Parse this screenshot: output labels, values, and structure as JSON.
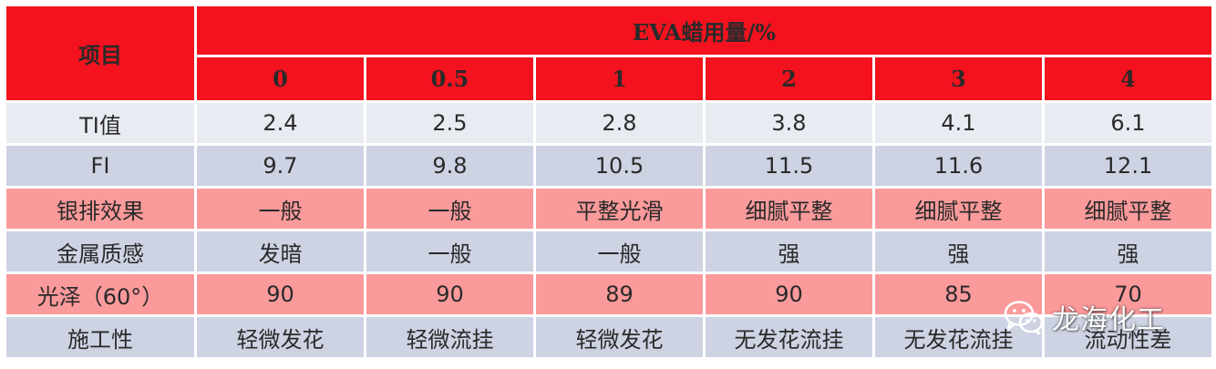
{
  "header": {
    "item_label": "项目",
    "title": "EVA蜡用量/%",
    "columns": [
      "0",
      "0.5",
      "1",
      "2",
      "3",
      "4"
    ]
  },
  "rows": [
    {
      "label": "TI值",
      "values": [
        "2.4",
        "2.5",
        "2.8",
        "3.8",
        "4.1",
        "6.1"
      ]
    },
    {
      "label": "FI",
      "values": [
        "9.7",
        "9.8",
        "10.5",
        "11.5",
        "11.6",
        "12.1"
      ]
    },
    {
      "label": "银排效果",
      "values": [
        "一般",
        "一般",
        "平整光滑",
        "细腻平整",
        "细腻平整",
        "细腻平整"
      ]
    },
    {
      "label": "金属质感",
      "values": [
        "发暗",
        "一般",
        "一般",
        "强",
        "强",
        "强"
      ]
    },
    {
      "label": "光泽（60°）",
      "values": [
        "90",
        "90",
        "89",
        "90",
        "85",
        "70"
      ]
    },
    {
      "label": "施工性",
      "values": [
        "轻微发花",
        "轻微流挂",
        "轻微发花",
        "无发花流挂",
        "无发花流挂",
        "流动性差"
      ]
    }
  ],
  "watermark": {
    "text": "龙海化工",
    "icon": "wechat-icon"
  },
  "colors": {
    "header_red": "#f3121e",
    "row_light": "#e8ebf2",
    "row_blue": "#cdd3e3",
    "row_pink": "#fb9a9b"
  }
}
